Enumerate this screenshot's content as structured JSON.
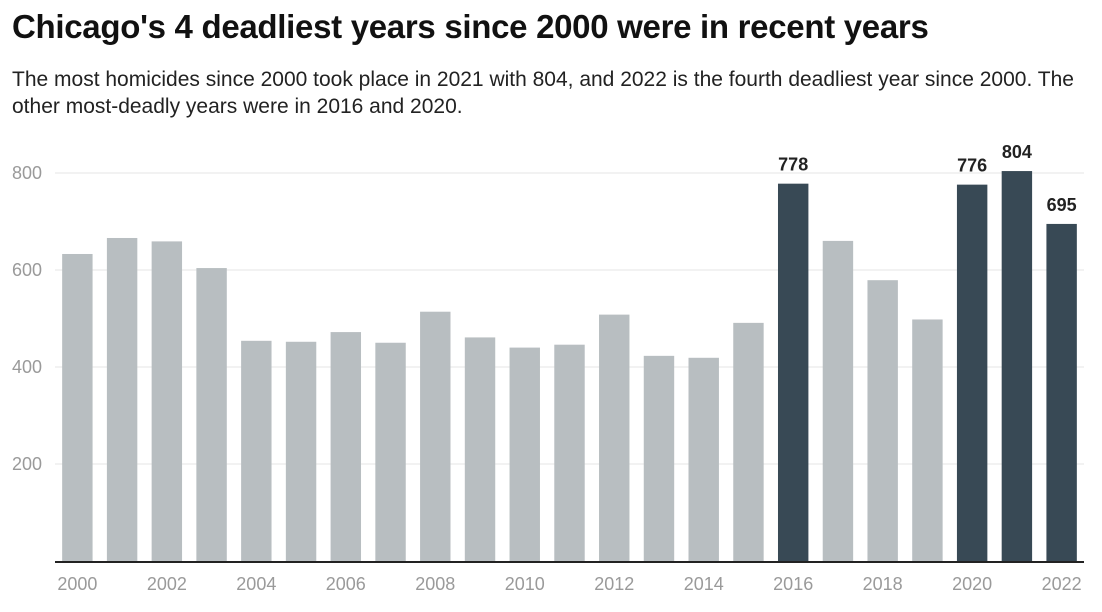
{
  "title": "Chicago's 4 deadliest years since 2000 were in recent years",
  "subtitle": "The most homicides since 2000 took place in 2021 with 804, and 2022 is the fourth deadliest year since 2000. The other most-deadly years were in 2016 and 2020.",
  "colors": {
    "default_bar": "#b8bec1",
    "highlight_bar": "#384955",
    "gridline": "#e6e6e6",
    "axis": "#222222"
  },
  "chart_data": {
    "type": "bar",
    "categories": [
      "2000",
      "2001",
      "2002",
      "2003",
      "2004",
      "2005",
      "2006",
      "2007",
      "2008",
      "2009",
      "2010",
      "2011",
      "2012",
      "2013",
      "2014",
      "2015",
      "2016",
      "2017",
      "2018",
      "2019",
      "2020",
      "2021",
      "2022"
    ],
    "values": [
      633,
      666,
      659,
      604,
      454,
      452,
      472,
      450,
      514,
      461,
      440,
      446,
      508,
      423,
      419,
      491,
      778,
      660,
      579,
      498,
      776,
      804,
      695
    ],
    "highlighted": [
      "2016",
      "2020",
      "2021",
      "2022"
    ],
    "x_tick_labels": [
      "2000",
      "2002",
      "2004",
      "2006",
      "2008",
      "2010",
      "2012",
      "2014",
      "2016",
      "2018",
      "2020",
      "2022"
    ],
    "y_ticks": [
      200,
      400,
      600,
      800
    ],
    "ylim": [
      0,
      800
    ],
    "grid": true,
    "data_labels": {
      "2016": "778",
      "2020": "776",
      "2021": "804",
      "2022": "695"
    }
  }
}
